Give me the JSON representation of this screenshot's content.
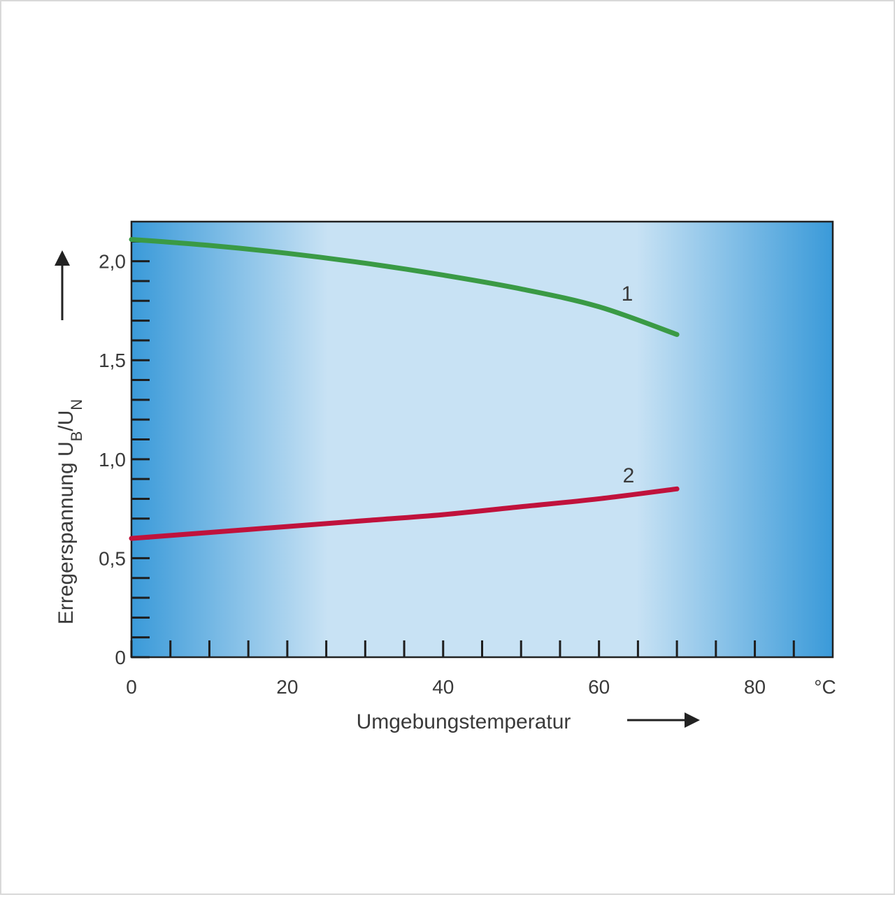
{
  "chart_data": {
    "type": "line",
    "xlabel": "Umgebungstemperatur",
    "ylabel_main": "Erregerspannung U",
    "ylabel_sub1": "B",
    "ylabel_mid": "/U",
    "ylabel_sub2": "N",
    "x_unit": "°C",
    "xlim": [
      0,
      90
    ],
    "ylim": [
      0,
      2.2
    ],
    "x_ticks": [
      0,
      20,
      40,
      60,
      80
    ],
    "x_tick_labels": [
      "0",
      "20",
      "40",
      "60",
      "80"
    ],
    "x_minor_step": 5,
    "y_ticks": [
      0,
      0.5,
      1.0,
      1.5,
      2.0
    ],
    "y_tick_labels": [
      "0",
      "0,5",
      "1,0",
      "1,5",
      "2,0"
    ],
    "y_minor_step": 0.1,
    "grid": false,
    "series": [
      {
        "name": "1",
        "color": "#3a9a45",
        "x": [
          0,
          10,
          20,
          30,
          40,
          50,
          60,
          70
        ],
        "y": [
          2.11,
          2.08,
          2.04,
          1.99,
          1.93,
          1.86,
          1.77,
          1.63
        ]
      },
      {
        "name": "2",
        "color": "#c0123c",
        "x": [
          0,
          10,
          20,
          30,
          40,
          50,
          60,
          70
        ],
        "y": [
          0.6,
          0.63,
          0.66,
          0.69,
          0.72,
          0.76,
          0.8,
          0.85
        ]
      }
    ],
    "background_colors": {
      "edge": "#3a9ad9",
      "center": "#c8e2f4"
    }
  }
}
